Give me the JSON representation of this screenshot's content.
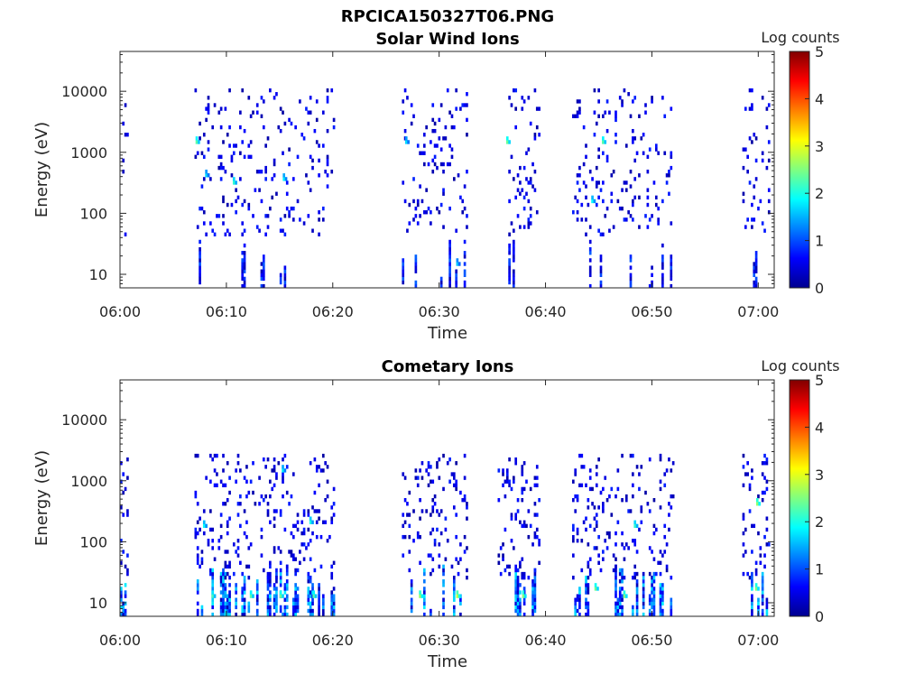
{
  "figure_title": "RPCICA150327T06.PNG",
  "colormap": [
    "#00008f",
    "#0000ff",
    "#0080ff",
    "#00ffff",
    "#80ff80",
    "#ffff00",
    "#ff8000",
    "#ff0000",
    "#800000"
  ],
  "chart_data": [
    {
      "type": "heatmap",
      "title": "Solar Wind Ions",
      "xlabel": "Time",
      "ylabel": "Energy (eV)",
      "x_ticks": [
        "06:00",
        "06:10",
        "06:20",
        "06:30",
        "06:40",
        "06:50",
        "07:00"
      ],
      "y_ticks": [
        "10",
        "100",
        "1000",
        "10000"
      ],
      "y_scale": "log",
      "y_range_ev": [
        6,
        45000
      ],
      "x_range_min": [
        0,
        61.5
      ],
      "colorbar": {
        "label": "Log counts",
        "ticks": [
          "0",
          "1",
          "2",
          "3",
          "4",
          "5"
        ],
        "range": [
          0,
          5
        ]
      },
      "grid": false,
      "activity_windows_min": [
        [
          0,
          0.8
        ],
        [
          7,
          20
        ],
        [
          26.5,
          32.5
        ],
        [
          36.5,
          39.5
        ],
        [
          42.5,
          52
        ],
        [
          58.5,
          61
        ]
      ],
      "high_energy_band_ev": [
        40,
        10000
      ],
      "low_energy_band_ev": [
        6,
        35
      ],
      "hotspots": [
        {
          "t": 7.1,
          "e": 1300,
          "v": 2.3
        },
        {
          "t": 10.6,
          "e": 300,
          "v": 2.1
        },
        {
          "t": 15.3,
          "e": 350,
          "v": 1.8
        },
        {
          "t": 26.8,
          "e": 1300,
          "v": 1.7
        },
        {
          "t": 31.6,
          "e": 14,
          "v": 1.6
        },
        {
          "t": 44.3,
          "e": 150,
          "v": 1.9
        },
        {
          "t": 45.3,
          "e": 1300,
          "v": 2.3
        },
        {
          "t": 36.3,
          "e": 1300,
          "v": 2.4
        },
        {
          "t": 8.0,
          "e": 400,
          "v": 1.7
        }
      ]
    },
    {
      "type": "heatmap",
      "title": "Cometary Ions",
      "xlabel": "Time",
      "ylabel": "Energy (eV)",
      "x_ticks": [
        "06:00",
        "06:10",
        "06:20",
        "06:30",
        "06:40",
        "06:50",
        "07:00"
      ],
      "y_ticks": [
        "10",
        "100",
        "1000",
        "10000"
      ],
      "y_scale": "log",
      "y_range_ev": [
        6,
        45000
      ],
      "x_range_min": [
        0,
        61.5
      ],
      "colorbar": {
        "label": "Log counts",
        "ticks": [
          "0",
          "1",
          "2",
          "3",
          "4",
          "5"
        ],
        "range": [
          0,
          5
        ]
      },
      "grid": false,
      "activity_windows_min": [
        [
          0,
          0.8
        ],
        [
          7,
          20
        ],
        [
          26.5,
          32.5
        ],
        [
          35.5,
          39.5
        ],
        [
          42.5,
          52
        ],
        [
          58.5,
          61
        ]
      ],
      "high_energy_band_ev": [
        25,
        2500
      ],
      "low_energy_band_ev": [
        6,
        35
      ],
      "hotspots": [
        {
          "t": 8.6,
          "e": 12,
          "v": 2.2
        },
        {
          "t": 12.2,
          "e": 12,
          "v": 2.3
        },
        {
          "t": 15.0,
          "e": 12,
          "v": 2.4
        },
        {
          "t": 18.1,
          "e": 12,
          "v": 2.3
        },
        {
          "t": 28.1,
          "e": 12,
          "v": 2.6
        },
        {
          "t": 31.6,
          "e": 12,
          "v": 2.8
        },
        {
          "t": 37.8,
          "e": 12,
          "v": 2.5
        },
        {
          "t": 44.6,
          "e": 15,
          "v": 2.4
        },
        {
          "t": 47.3,
          "e": 12,
          "v": 2.5
        },
        {
          "t": 48.3,
          "e": 180,
          "v": 2.1
        },
        {
          "t": 59.7,
          "e": 15,
          "v": 2.5
        },
        {
          "t": 59.8,
          "e": 400,
          "v": 2.6
        },
        {
          "t": 15.2,
          "e": 1400,
          "v": 1.8
        },
        {
          "t": 7.8,
          "e": 180,
          "v": 1.9
        },
        {
          "t": 17.8,
          "e": 200,
          "v": 2.0
        }
      ]
    }
  ]
}
